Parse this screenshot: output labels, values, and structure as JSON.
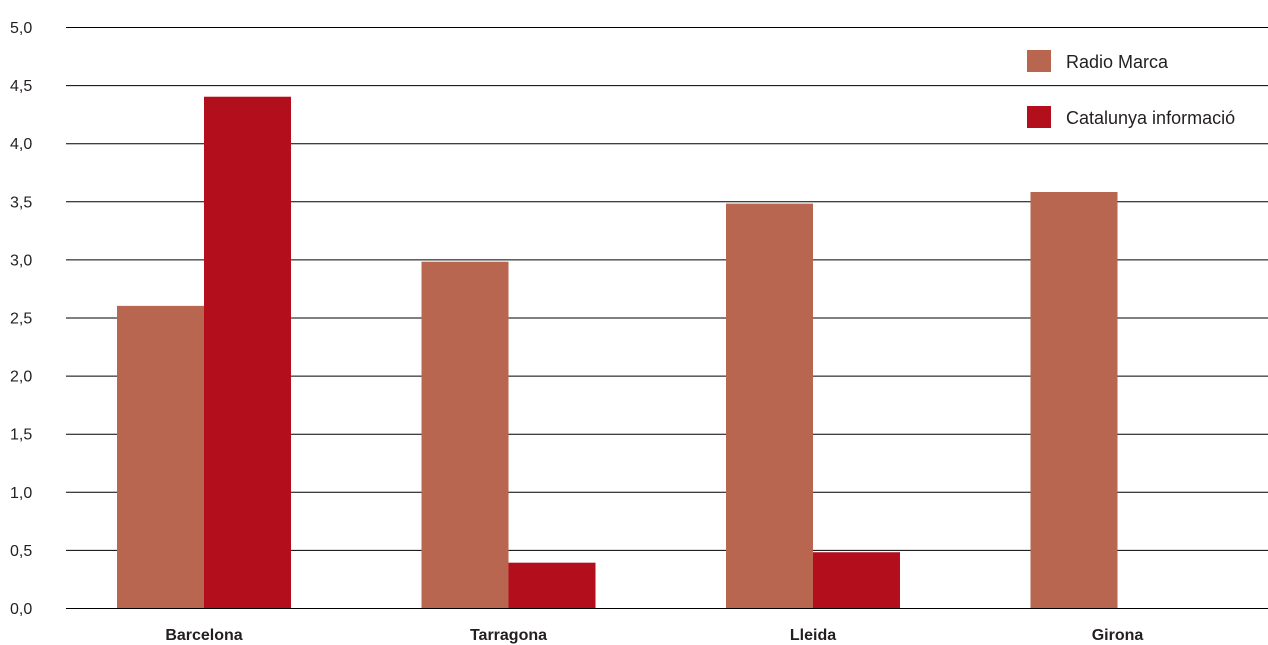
{
  "chart_data": {
    "type": "bar",
    "categories": [
      "Barcelona",
      "Tarragona",
      "Lleida",
      "Girona"
    ],
    "series": [
      {
        "name": "Radio Marca",
        "values": [
          2.6,
          2.98,
          3.48,
          3.58
        ],
        "color": "#b96651"
      },
      {
        "name": "Catalunya informació",
        "values": [
          4.4,
          0.39,
          0.48,
          0
        ],
        "color": "#b20e1c"
      }
    ],
    "ylim": [
      0,
      5
    ],
    "y_ticks": [
      "0,0",
      "0,5",
      "1,0",
      "1,5",
      "2,0",
      "2,5",
      "3,0",
      "3,5",
      "4,0",
      "4,5",
      "5,0"
    ],
    "grid": true,
    "legend_position": "top-right",
    "title": "",
    "xlabel": "",
    "ylabel": ""
  }
}
